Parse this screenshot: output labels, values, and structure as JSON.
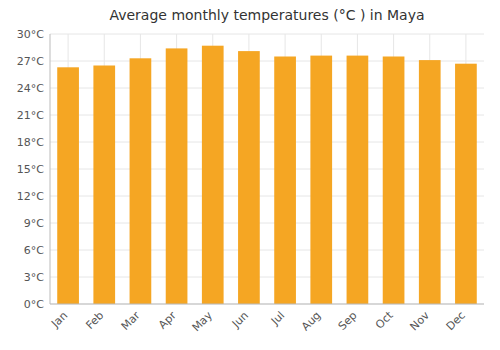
{
  "chart_data": {
    "type": "bar",
    "title": "Average monthly temperatures (°C ) in Maya",
    "categories": [
      "Jan",
      "Feb",
      "Mar",
      "Apr",
      "May",
      "Jun",
      "Jul",
      "Aug",
      "Sep",
      "Oct",
      "Nov",
      "Dec"
    ],
    "values": [
      26.3,
      26.5,
      27.3,
      28.4,
      28.7,
      28.1,
      27.5,
      27.6,
      27.6,
      27.5,
      27.1,
      26.7
    ],
    "color": "#F5A623",
    "ylim": [
      0,
      30
    ],
    "yticks": [
      {
        "value": 0,
        "label": "0°C"
      },
      {
        "value": 3,
        "label": "3°C"
      },
      {
        "value": 6,
        "label": "6°C"
      },
      {
        "value": 9,
        "label": "9°C"
      },
      {
        "value": 12,
        "label": "12°C"
      },
      {
        "value": 15,
        "label": "15°C"
      },
      {
        "value": 18,
        "label": "18°C"
      },
      {
        "value": 21,
        "label": "21°C"
      },
      {
        "value": 24,
        "label": "24°C"
      },
      {
        "value": 27,
        "label": "27°C"
      },
      {
        "value": 30,
        "label": "30°C"
      }
    ],
    "grid": true
  }
}
